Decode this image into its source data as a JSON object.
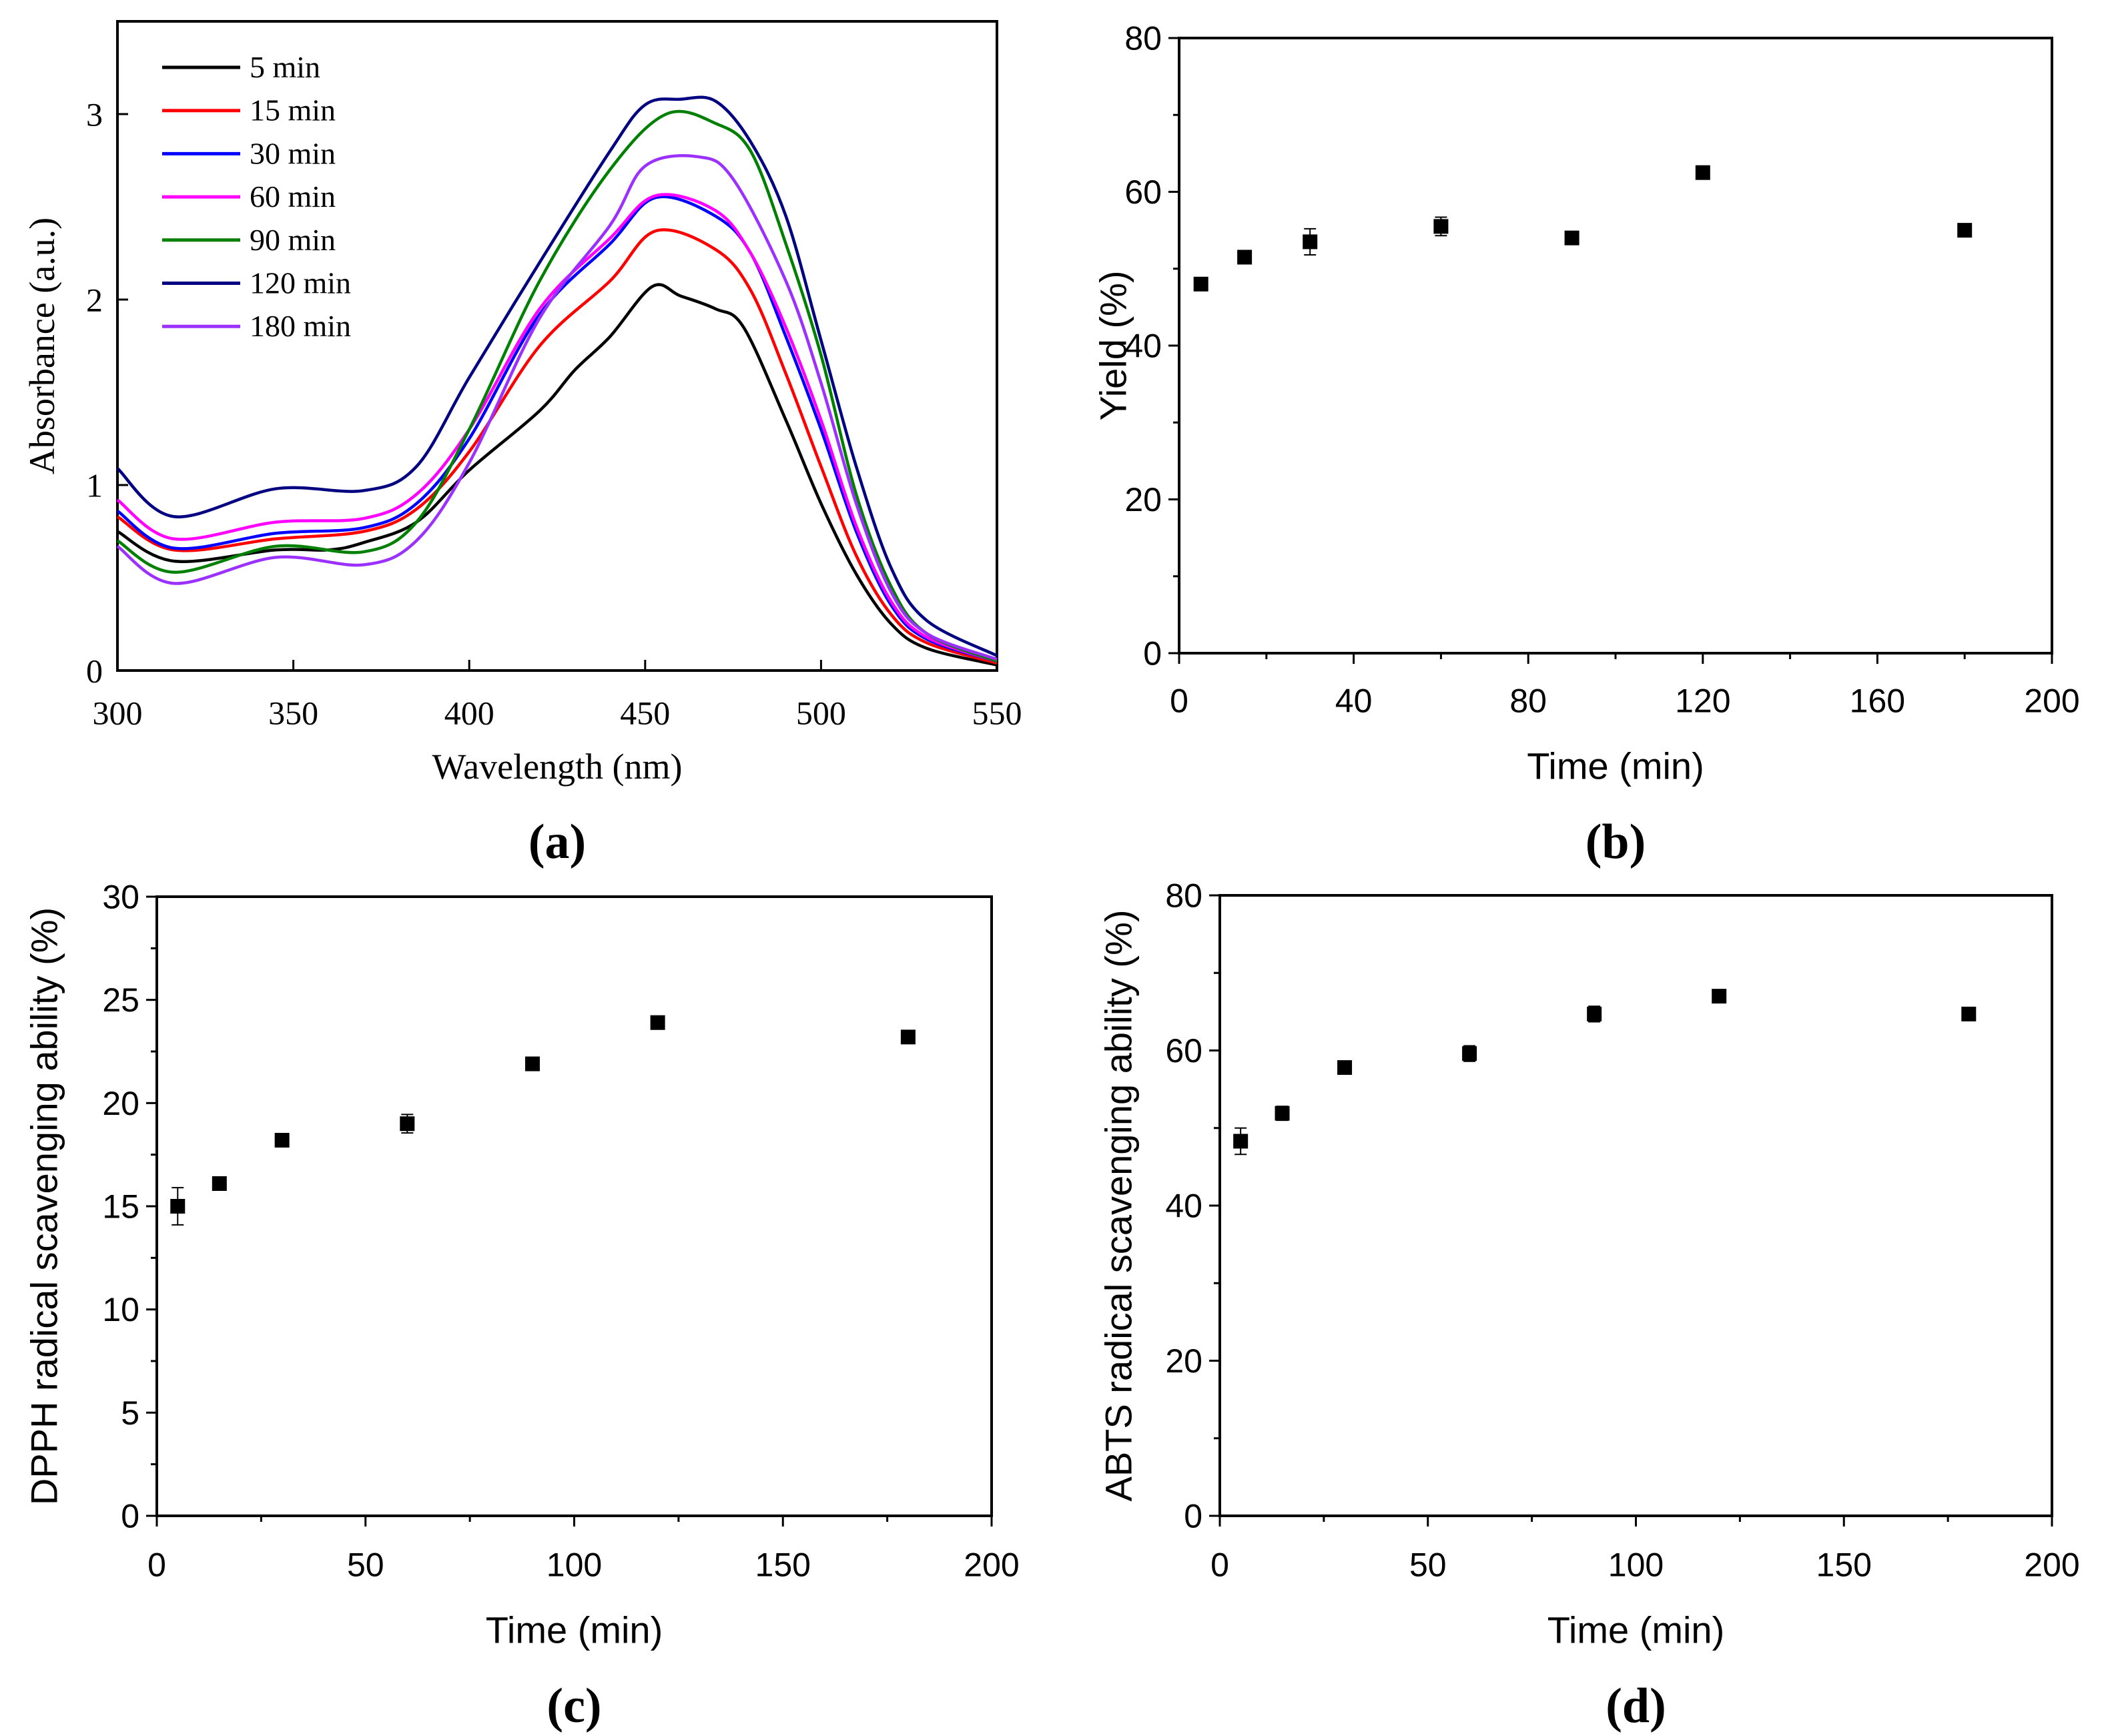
{
  "chart_data": [
    {
      "id": "a",
      "type": "line",
      "panel_label": "(a)",
      "xlabel": "Wavelength (nm)",
      "ylabel": "Absorbance (a.u.)",
      "xlim": [
        300,
        550
      ],
      "ylim": [
        0,
        3.5
      ],
      "xticks": [
        300,
        350,
        400,
        450,
        500,
        550
      ],
      "yticks": [
        0,
        1,
        2,
        3
      ],
      "grid": false,
      "legend_position": "top-left",
      "series": [
        {
          "name": "5 min",
          "color": "#000000",
          "points": [
            [
              300,
              0.75
            ],
            [
              316,
              0.59
            ],
            [
              345,
              0.65
            ],
            [
              360,
              0.65
            ],
            [
              370,
              0.69
            ],
            [
              385,
              0.8
            ],
            [
              400,
              1.08
            ],
            [
              420,
              1.4
            ],
            [
              430,
              1.62
            ],
            [
              440,
              1.8
            ],
            [
              452,
              2.07
            ],
            [
              460,
              2.02
            ],
            [
              470,
              1.95
            ],
            [
              478,
              1.85
            ],
            [
              490,
              1.35
            ],
            [
              500,
              0.9
            ],
            [
              510,
              0.52
            ],
            [
              520,
              0.25
            ],
            [
              530,
              0.12
            ],
            [
              550,
              0.03
            ]
          ]
        },
        {
          "name": "15 min",
          "color": "#ff0000",
          "points": [
            [
              300,
              0.83
            ],
            [
              316,
              0.65
            ],
            [
              345,
              0.71
            ],
            [
              370,
              0.75
            ],
            [
              385,
              0.87
            ],
            [
              400,
              1.18
            ],
            [
              420,
              1.75
            ],
            [
              440,
              2.1
            ],
            [
              453,
              2.37
            ],
            [
              470,
              2.27
            ],
            [
              480,
              2.05
            ],
            [
              490,
              1.6
            ],
            [
              500,
              1.1
            ],
            [
              510,
              0.62
            ],
            [
              520,
              0.3
            ],
            [
              530,
              0.15
            ],
            [
              550,
              0.04
            ]
          ]
        },
        {
          "name": "30 min",
          "color": "#0000ff",
          "points": [
            [
              300,
              0.86
            ],
            [
              316,
              0.66
            ],
            [
              345,
              0.74
            ],
            [
              370,
              0.77
            ],
            [
              385,
              0.9
            ],
            [
              400,
              1.25
            ],
            [
              420,
              1.92
            ],
            [
              440,
              2.3
            ],
            [
              453,
              2.55
            ],
            [
              470,
              2.45
            ],
            [
              480,
              2.25
            ],
            [
              490,
              1.8
            ],
            [
              500,
              1.3
            ],
            [
              510,
              0.75
            ],
            [
              520,
              0.35
            ],
            [
              530,
              0.17
            ],
            [
              550,
              0.05
            ]
          ]
        },
        {
          "name": "60 min",
          "color": "#ff00ff",
          "points": [
            [
              300,
              0.92
            ],
            [
              316,
              0.71
            ],
            [
              345,
              0.8
            ],
            [
              370,
              0.82
            ],
            [
              385,
              0.95
            ],
            [
              400,
              1.3
            ],
            [
              420,
              1.95
            ],
            [
              440,
              2.33
            ],
            [
              453,
              2.56
            ],
            [
              470,
              2.48
            ],
            [
              480,
              2.25
            ],
            [
              490,
              1.85
            ],
            [
              500,
              1.35
            ],
            [
              510,
              0.78
            ],
            [
              520,
              0.37
            ],
            [
              530,
              0.18
            ],
            [
              550,
              0.05
            ]
          ]
        },
        {
          "name": "90 min",
          "color": "#008000",
          "points": [
            [
              300,
              0.7
            ],
            [
              316,
              0.53
            ],
            [
              345,
              0.67
            ],
            [
              370,
              0.64
            ],
            [
              385,
              0.8
            ],
            [
              400,
              1.3
            ],
            [
              420,
              2.1
            ],
            [
              440,
              2.7
            ],
            [
              456,
              3.0
            ],
            [
              470,
              2.95
            ],
            [
              480,
              2.8
            ],
            [
              490,
              2.3
            ],
            [
              500,
              1.7
            ],
            [
              510,
              0.95
            ],
            [
              520,
              0.45
            ],
            [
              530,
              0.2
            ],
            [
              550,
              0.05
            ]
          ]
        },
        {
          "name": "120 min",
          "color": "#000080",
          "points": [
            [
              300,
              1.09
            ],
            [
              316,
              0.83
            ],
            [
              345,
              0.98
            ],
            [
              370,
              0.97
            ],
            [
              385,
              1.1
            ],
            [
              400,
              1.58
            ],
            [
              420,
              2.2
            ],
            [
              440,
              2.8
            ],
            [
              450,
              3.05
            ],
            [
              460,
              3.08
            ],
            [
              470,
              3.07
            ],
            [
              480,
              2.85
            ],
            [
              490,
              2.45
            ],
            [
              500,
              1.78
            ],
            [
              510,
              1.1
            ],
            [
              520,
              0.55
            ],
            [
              530,
              0.27
            ],
            [
              550,
              0.08
            ]
          ]
        },
        {
          "name": "180 min",
          "color": "#9b30ff",
          "points": [
            [
              300,
              0.67
            ],
            [
              316,
              0.47
            ],
            [
              345,
              0.61
            ],
            [
              370,
              0.57
            ],
            [
              385,
              0.7
            ],
            [
              400,
              1.12
            ],
            [
              420,
              1.9
            ],
            [
              440,
              2.4
            ],
            [
              450,
              2.72
            ],
            [
              465,
              2.77
            ],
            [
              475,
              2.65
            ],
            [
              490,
              2.1
            ],
            [
              500,
              1.55
            ],
            [
              510,
              0.9
            ],
            [
              520,
              0.42
            ],
            [
              530,
              0.2
            ],
            [
              550,
              0.06
            ]
          ]
        }
      ]
    },
    {
      "id": "b",
      "type": "scatter",
      "panel_label": "(b)",
      "xlabel": "Time (min)",
      "ylabel": "Yield (%)",
      "xlim": [
        0,
        200
      ],
      "ylim": [
        0,
        80
      ],
      "xticks": [
        0,
        40,
        80,
        120,
        160,
        200
      ],
      "xminor": 20,
      "yticks": [
        0,
        20,
        40,
        60,
        80
      ],
      "yminor": 10,
      "grid": false,
      "x": [
        5,
        15,
        30,
        60,
        90,
        120,
        180
      ],
      "y": [
        48,
        51.5,
        53.5,
        55.5,
        54,
        62.5,
        55
      ],
      "err": [
        0.8,
        0.6,
        1.7,
        1.2,
        0.5,
        0.5,
        0.5
      ]
    },
    {
      "id": "c",
      "type": "scatter",
      "panel_label": "(c)",
      "xlabel": "Time (min)",
      "ylabel": "DPPH radical scavenging ability (%)",
      "xlim": [
        0,
        200
      ],
      "ylim": [
        0,
        30
      ],
      "xticks": [
        0,
        50,
        100,
        150,
        200
      ],
      "xminor": 25,
      "yticks": [
        0,
        5,
        10,
        15,
        20,
        25,
        30
      ],
      "yminor": 2.5,
      "grid": false,
      "x": [
        5,
        15,
        30,
        60,
        90,
        120,
        180
      ],
      "y": [
        15,
        16.1,
        18.2,
        19,
        21.9,
        23.9,
        23.2
      ],
      "err": [
        0.9,
        0.2,
        0.15,
        0.45,
        0.2,
        0.15,
        0.2
      ]
    },
    {
      "id": "d",
      "type": "scatter",
      "panel_label": "(d)",
      "xlabel": "Time (min)",
      "ylabel": "ABTS radical scavenging ability (%)",
      "xlim": [
        0,
        200
      ],
      "ylim": [
        0,
        80
      ],
      "xticks": [
        0,
        50,
        100,
        150,
        200
      ],
      "xminor": 25,
      "yticks": [
        0,
        20,
        40,
        60,
        80
      ],
      "yminor": 10,
      "grid": false,
      "x": [
        5,
        15,
        30,
        60,
        90,
        120,
        180
      ],
      "y": [
        48.3,
        51.9,
        57.8,
        59.6,
        64.7,
        67,
        64.7
      ],
      "err": [
        1.7,
        0.9,
        0.4,
        1.0,
        1.0,
        0.4,
        0.8
      ]
    }
  ]
}
